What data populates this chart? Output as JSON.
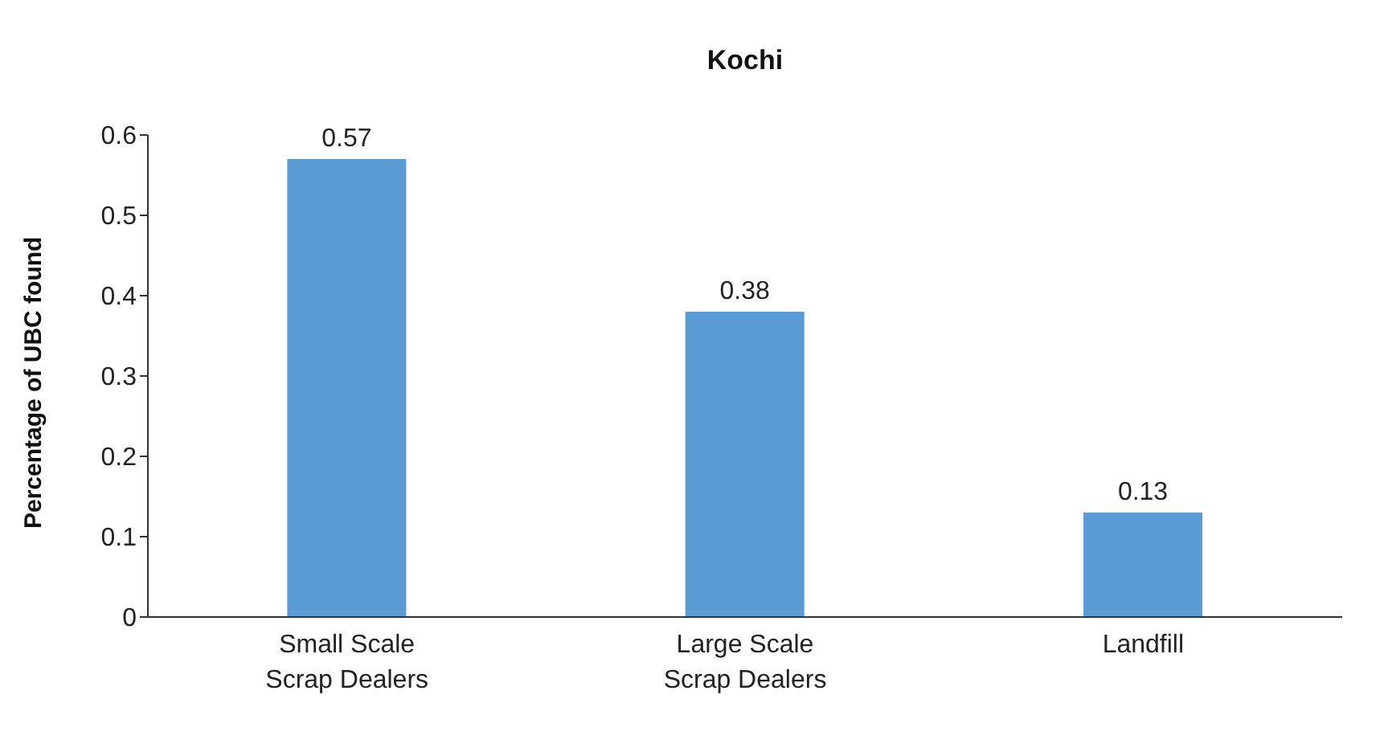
{
  "chart_data": {
    "type": "bar",
    "title": "Kochi",
    "ylabel": "Percentage of UBC found",
    "categories": [
      "Small Scale Scrap Dealers",
      "Large Scale Scrap Dealers",
      "Landfill"
    ],
    "values": [
      0.57,
      0.38,
      0.13
    ],
    "color": "#5b9bd5",
    "ylim": [
      0,
      0.6
    ],
    "yticks": [
      0,
      0.1,
      0.2,
      0.3,
      0.4,
      0.5,
      0.6
    ],
    "grid": false,
    "data_labels": true
  }
}
